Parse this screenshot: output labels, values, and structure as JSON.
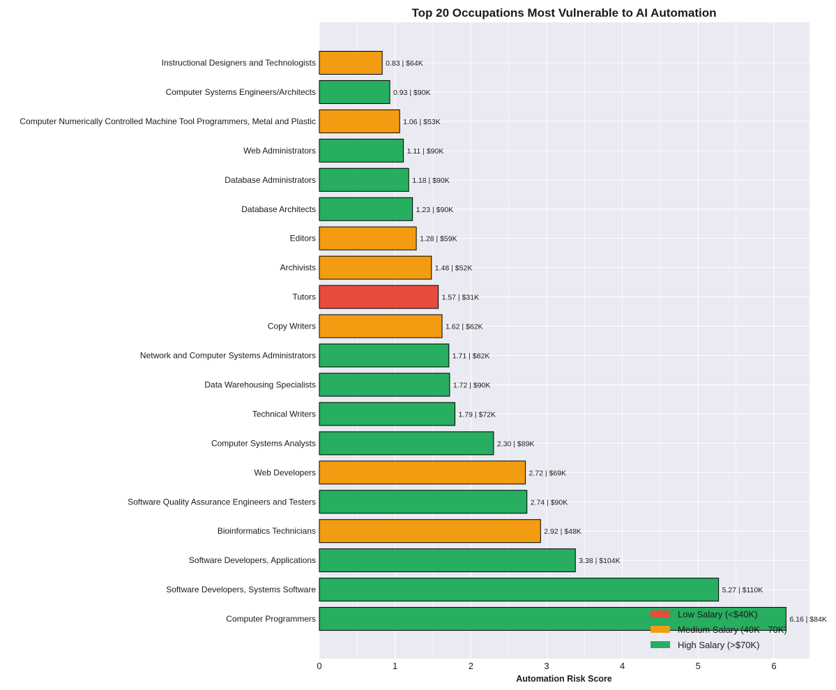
{
  "chart_data": {
    "type": "bar",
    "orientation": "horizontal",
    "title": "Top 20 Occupations Most Vulnerable to AI Automation",
    "xlabel": "Automation Risk Score",
    "ylabel": "",
    "xlim": [
      0,
      6.47
    ],
    "xticks": [
      "0",
      "1",
      "2",
      "3",
      "4",
      "5",
      "6"
    ],
    "grid": true,
    "legend_position": "bottom-right",
    "legend": [
      {
        "key": "low",
        "label": "Low Salary (<$40K)"
      },
      {
        "key": "medium",
        "label": "Medium Salary (40K - 70K)"
      },
      {
        "key": "high",
        "label": "High Salary (>$70K)"
      }
    ],
    "colors": {
      "low": "#e74c3c",
      "medium": "#f39c12",
      "high": "#27ae60",
      "background": "#eaeaf2",
      "grid": "#ffffff",
      "edge": "#000000"
    },
    "categories": [
      "Instructional Designers and Technologists",
      "Computer Systems Engineers/Architects",
      "Computer Numerically Controlled Machine Tool Programmers, Metal and Plastic",
      "Web Administrators",
      "Database Administrators",
      "Database Architects",
      "Editors",
      "Archivists",
      "Tutors",
      "Copy Writers",
      "Network and Computer Systems Administrators",
      "Data Warehousing Specialists",
      "Technical Writers",
      "Computer Systems Analysts",
      "Web Developers",
      "Software Quality Assurance Engineers and Testers",
      "Bioinformatics Technicians",
      "Software Developers, Applications",
      "Software Developers, Systems Software",
      "Computer Programmers"
    ],
    "values": [
      0.83,
      0.93,
      1.06,
      1.11,
      1.18,
      1.23,
      1.28,
      1.48,
      1.57,
      1.62,
      1.71,
      1.72,
      1.79,
      2.3,
      2.72,
      2.74,
      2.92,
      3.38,
      5.27,
      6.16
    ],
    "salary_group": [
      "medium",
      "high",
      "medium",
      "high",
      "high",
      "high",
      "medium",
      "medium",
      "low",
      "medium",
      "high",
      "high",
      "high",
      "high",
      "medium",
      "high",
      "medium",
      "high",
      "high",
      "high"
    ],
    "bar_labels": [
      "0.83 | $64K",
      "0.93 | $90K",
      "1.06 | $53K",
      "1.11 | $90K",
      "1.18 | $90K",
      "1.23 | $90K",
      "1.28 | $59K",
      "1.48 | $52K",
      "1.57 | $31K",
      "1.62 | $62K",
      "1.71 | $82K",
      "1.72 | $90K",
      "1.79 | $72K",
      "2.30 | $89K",
      "2.72 | $69K",
      "2.74 | $90K",
      "2.92 | $48K",
      "3.38 | $104K",
      "5.27 | $110K",
      "6.16 | $84K"
    ]
  }
}
